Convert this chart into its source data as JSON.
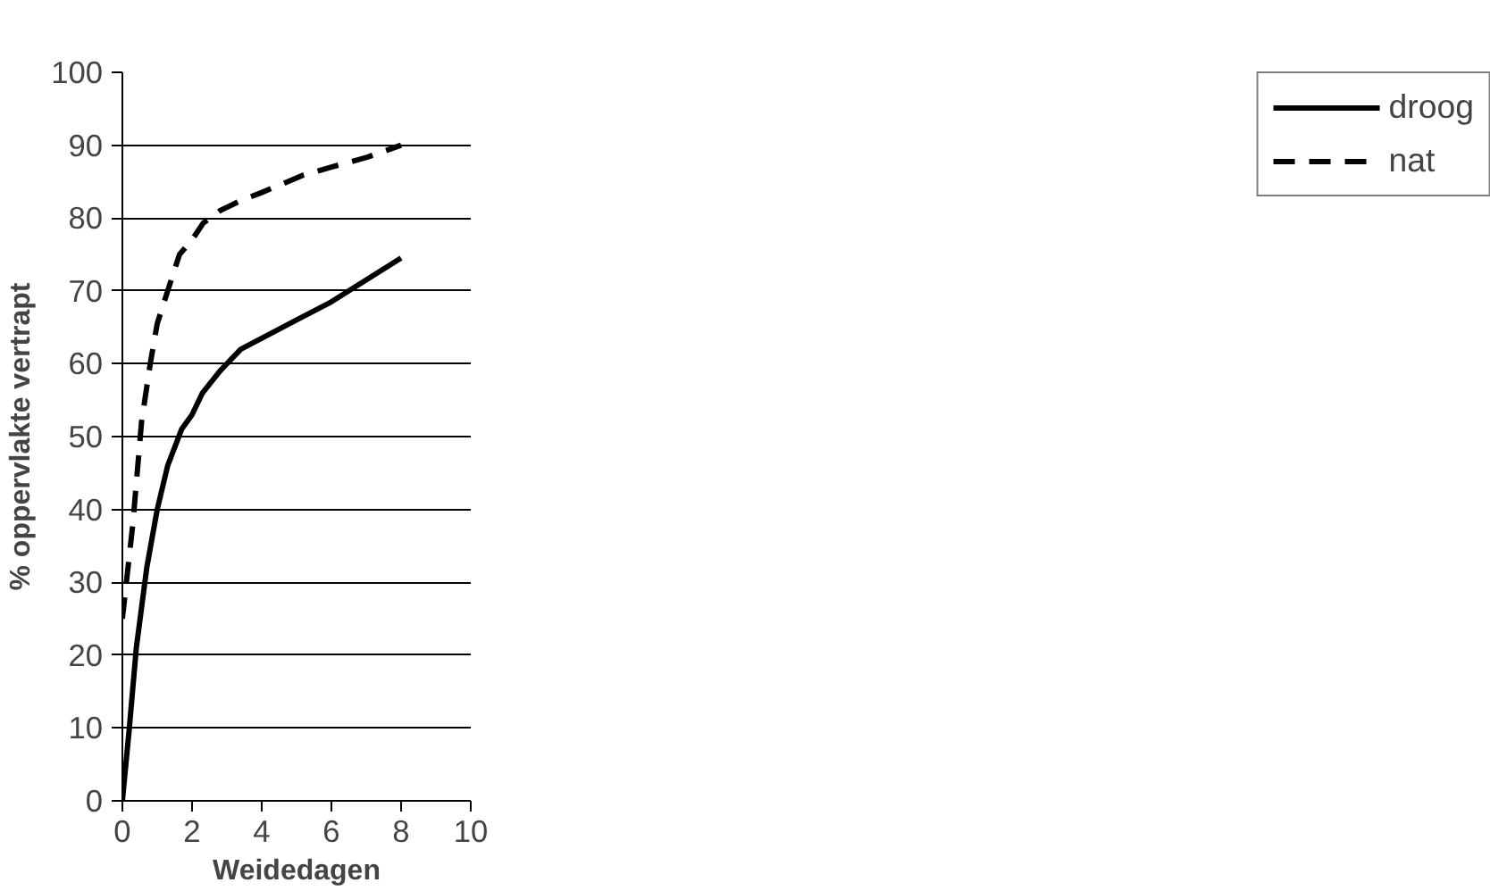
{
  "chart_data": {
    "type": "line",
    "xlabel": "Weidedagen",
    "ylabel": "% oppervlakte vertrapt",
    "xlim": [
      0,
      10
    ],
    "ylim": [
      0,
      100
    ],
    "xticks": [
      0,
      2,
      4,
      6,
      8,
      10
    ],
    "yticks": [
      0,
      10,
      20,
      30,
      40,
      50,
      60,
      70,
      80,
      90,
      100
    ],
    "grid": "y",
    "legend": "right",
    "marker": "none",
    "series": [
      {
        "name": "droog",
        "color": "#000000",
        "line_style": "solid",
        "x": [
          0,
          0.2,
          0.4,
          0.7,
          1,
          1.3,
          1.7,
          2,
          2.3,
          2.8,
          3.4,
          4,
          5,
          6,
          7,
          8
        ],
        "values": [
          0,
          10,
          21,
          32,
          40,
          46,
          51,
          53,
          56,
          59,
          62,
          63.5,
          66,
          68.5,
          71.5,
          74.5
        ]
      },
      {
        "name": "nat",
        "color": "#000000",
        "line_style": "dashed",
        "x": [
          0,
          0.3,
          0.55,
          0.8,
          1,
          1.3,
          1.64,
          2,
          2.32,
          2.8,
          3.4,
          4,
          5.2,
          6,
          7,
          8
        ],
        "values": [
          25,
          38,
          52,
          60,
          65.5,
          70,
          75,
          77,
          79.3,
          81,
          82.4,
          83.5,
          85.9,
          87,
          88.3,
          90
        ]
      }
    ]
  }
}
